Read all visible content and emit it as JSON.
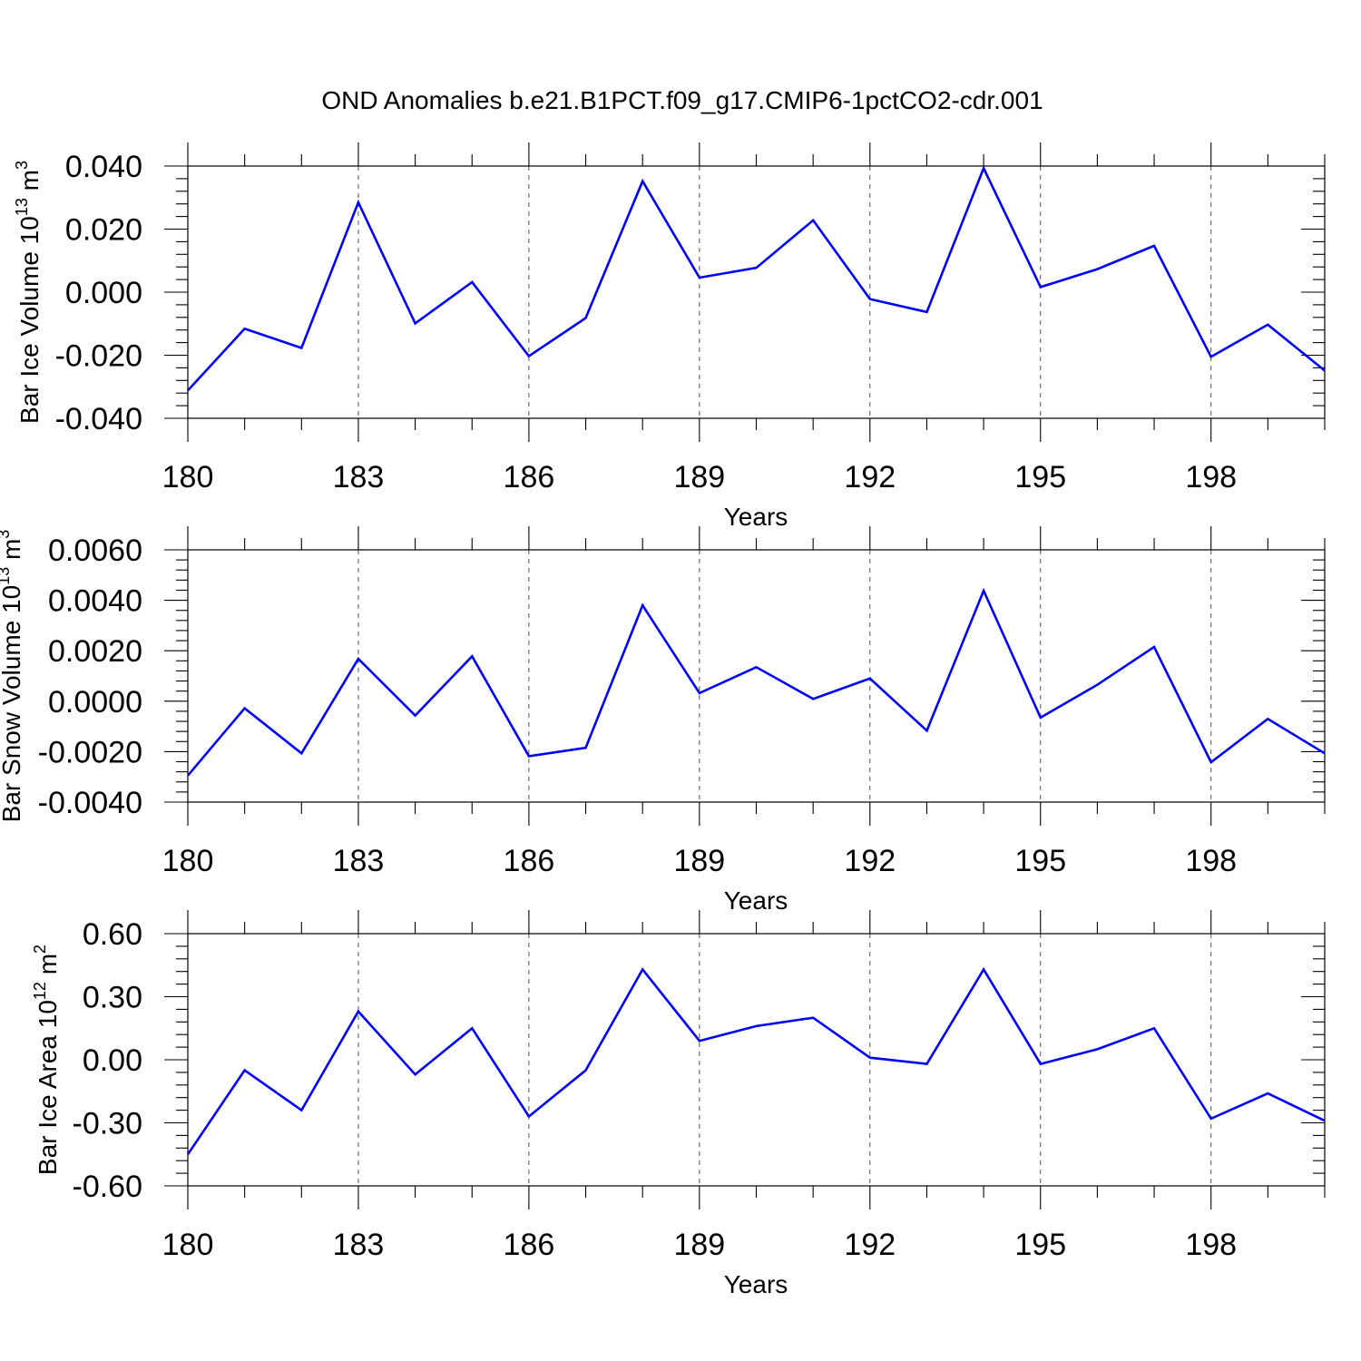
{
  "title": "OND Anomalies b.e21.B1PCT.f09_g17.CMIP6-1pctCO2-cdr.001",
  "line_color": "#0000ff",
  "chart_data": [
    {
      "type": "line",
      "title": "OND Anomalies b.e21.B1PCT.f09_g17.CMIP6-1pctCO2-cdr.001",
      "xlabel": "Years",
      "ylabel": "Bar Ice Volume 10",
      "ylabel_exponent": "13",
      "ylabel_unit": "m",
      "ylabel_unit_power": "3",
      "xlim": [
        180,
        200
      ],
      "ylim": [
        -0.04,
        0.04
      ],
      "xticks": [
        180,
        183,
        186,
        189,
        192,
        195,
        198
      ],
      "xtick_labels": [
        "180",
        "183",
        "186",
        "189",
        "192",
        "195",
        "198"
      ],
      "yticks": [
        -0.04,
        -0.02,
        0.0,
        0.02,
        0.04
      ],
      "ytick_labels": [
        "-0.040",
        "-0.020",
        "0.000",
        "0.020",
        "0.040"
      ],
      "ygrid": false,
      "xgrid_dashed": true,
      "series": [
        {
          "name": "Bar Ice Volume",
          "x": [
            180,
            181,
            182,
            183,
            184,
            185,
            186,
            187,
            188,
            189,
            190,
            191,
            192,
            193,
            194,
            195,
            196,
            197,
            198,
            199,
            200
          ],
          "values": [
            -0.0312,
            -0.0116,
            -0.0177,
            0.0285,
            -0.0099,
            0.0032,
            -0.0203,
            -0.0082,
            0.0352,
            0.0046,
            0.0077,
            0.0228,
            -0.0022,
            -0.0063,
            0.0393,
            0.0016,
            0.0073,
            0.0147,
            -0.0205,
            -0.0103,
            -0.0249
          ]
        }
      ]
    },
    {
      "type": "line",
      "xlabel": "Years",
      "ylabel": "Bar Snow Volume 10",
      "ylabel_exponent": "13",
      "ylabel_unit": "m",
      "ylabel_unit_power": "3",
      "xlim": [
        180,
        200
      ],
      "ylim": [
        -0.004,
        0.006
      ],
      "xticks": [
        180,
        183,
        186,
        189,
        192,
        195,
        198
      ],
      "xtick_labels": [
        "180",
        "183",
        "186",
        "189",
        "192",
        "195",
        "198"
      ],
      "yticks": [
        -0.004,
        -0.002,
        0.0,
        0.002,
        0.004,
        0.006
      ],
      "ytick_labels": [
        "-0.0040",
        "-0.0020",
        "0.0000",
        "0.0020",
        "0.0040",
        "0.0060"
      ],
      "ygrid": false,
      "xgrid_dashed": true,
      "series": [
        {
          "name": "Bar Snow Volume",
          "x": [
            180,
            181,
            182,
            183,
            184,
            185,
            186,
            187,
            188,
            189,
            190,
            191,
            192,
            193,
            194,
            195,
            196,
            197,
            198,
            199,
            200
          ],
          "values": [
            -0.00295,
            -0.00028,
            -0.00207,
            0.00168,
            -0.00057,
            0.00178,
            -0.00218,
            -0.00185,
            0.0038,
            0.00032,
            0.00135,
            9e-05,
            0.0009,
            -0.00117,
            0.00438,
            -0.00065,
            0.00065,
            0.00215,
            -0.00242,
            -0.0007,
            -0.00207
          ]
        }
      ]
    },
    {
      "type": "line",
      "xlabel": "Years",
      "ylabel": "Bar Ice Area 10",
      "ylabel_exponent": "12",
      "ylabel_unit": "m",
      "ylabel_unit_power": "2",
      "xlim": [
        180,
        200
      ],
      "ylim": [
        -0.6,
        0.6
      ],
      "xticks": [
        180,
        183,
        186,
        189,
        192,
        195,
        198
      ],
      "xtick_labels": [
        "180",
        "183",
        "186",
        "189",
        "192",
        "195",
        "198"
      ],
      "yticks": [
        -0.6,
        -0.3,
        0.0,
        0.3,
        0.6
      ],
      "ytick_labels": [
        "-0.60",
        "-0.30",
        "0.00",
        "0.30",
        "0.60"
      ],
      "ygrid": false,
      "xgrid_dashed": true,
      "series": [
        {
          "name": "Bar Ice Area",
          "x": [
            180,
            181,
            182,
            183,
            184,
            185,
            186,
            187,
            188,
            189,
            190,
            191,
            192,
            193,
            194,
            195,
            196,
            197,
            198,
            199,
            200
          ],
          "values": [
            -0.45,
            -0.05,
            -0.24,
            0.23,
            -0.07,
            0.15,
            -0.27,
            -0.05,
            0.43,
            0.09,
            0.16,
            0.2,
            0.01,
            -0.02,
            0.43,
            -0.02,
            0.05,
            0.15,
            -0.28,
            -0.16,
            -0.29
          ]
        }
      ]
    }
  ]
}
